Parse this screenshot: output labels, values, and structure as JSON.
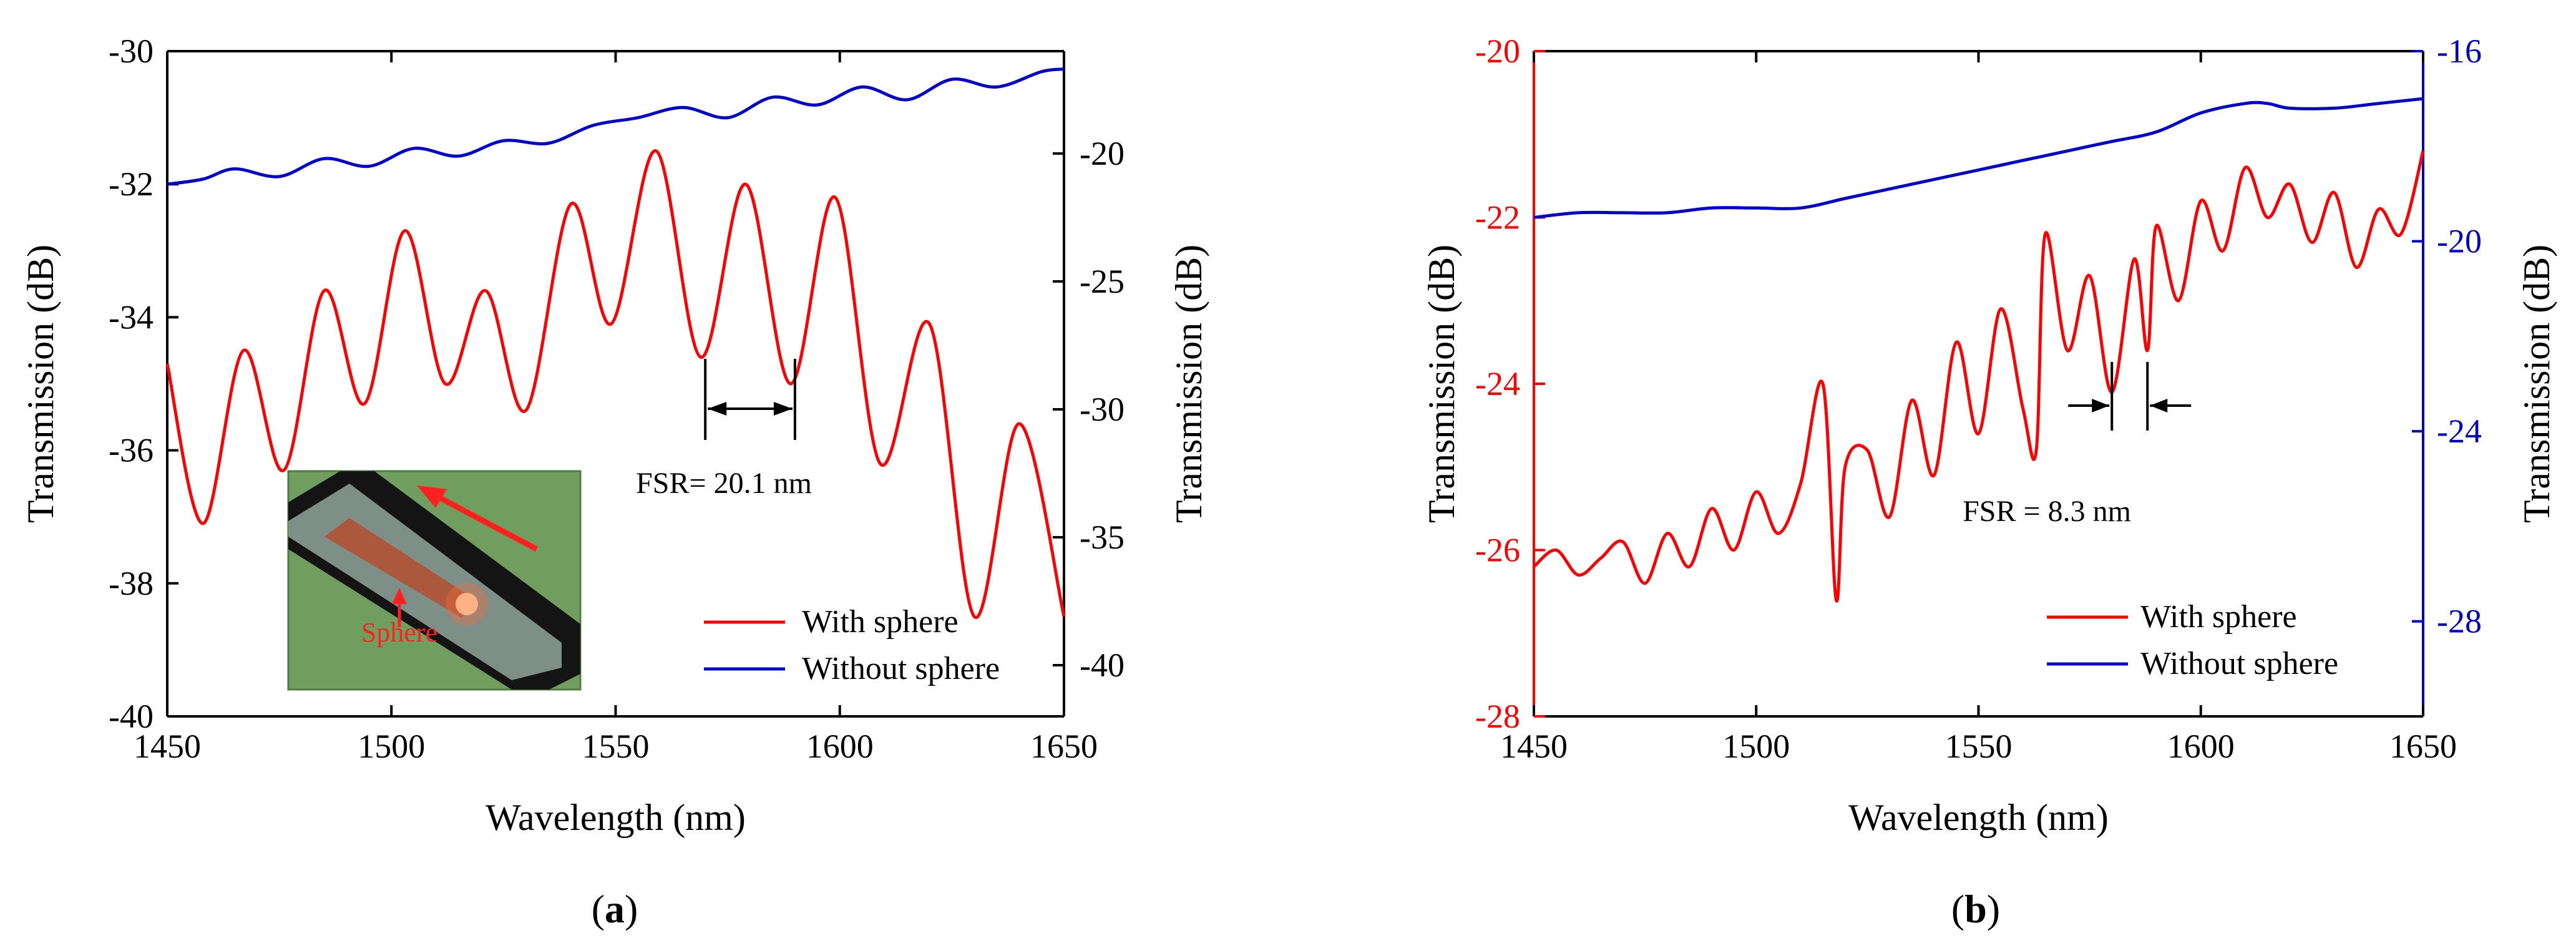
{
  "chart_data": [
    {
      "type": "line",
      "panel_label_open": "(",
      "panel_label_letter": "a",
      "panel_label_close": ")",
      "xlabel": "Wavelength (nm)",
      "ylabel_left": "Transmission (dB)",
      "ylabel_right": "Transmission (dB)",
      "xlim": [
        1450,
        1650
      ],
      "ylim_left": [
        -40,
        -30
      ],
      "ylim_right": [
        -42,
        -16
      ],
      "xticks": [
        1450,
        1500,
        1550,
        1600,
        1650
      ],
      "yticks_left": [
        -40,
        -38,
        -36,
        -34,
        -32,
        -30
      ],
      "yticks_right": [
        -40,
        -35,
        -30,
        -25,
        -20
      ],
      "left_axis_color": "#000000",
      "right_axis_color": "#000000",
      "grid": false,
      "legend_position": "bottom-right",
      "annotation": {
        "text": "FSR= 20.1 nm",
        "x1": 1570,
        "x2": 1590
      },
      "inset": {
        "label": "Sphere"
      },
      "series": [
        {
          "name": "With sphere",
          "axis": "left",
          "color": "#ff0000",
          "x": [
            1450,
            1458,
            1467,
            1476,
            1485,
            1494,
            1503,
            1512,
            1521,
            1530,
            1540,
            1549,
            1559,
            1569,
            1579,
            1589,
            1599,
            1609,
            1620,
            1630,
            1640,
            1650
          ],
          "y": [
            -34.7,
            -37.1,
            -34.5,
            -36.3,
            -33.6,
            -35.3,
            -32.7,
            -35.0,
            -33.6,
            -35.4,
            -32.3,
            -34.1,
            -31.5,
            -34.6,
            -32.0,
            -35.0,
            -32.2,
            -36.2,
            -34.1,
            -38.5,
            -35.6,
            -38.5
          ]
        },
        {
          "name": "Without sphere",
          "axis": "right",
          "color": "#0000cc",
          "x": [
            1450,
            1458,
            1465,
            1475,
            1485,
            1495,
            1505,
            1515,
            1525,
            1535,
            1545,
            1555,
            1565,
            1575,
            1585,
            1595,
            1605,
            1615,
            1625,
            1635,
            1645,
            1650
          ],
          "y": [
            -21.2,
            -21.0,
            -20.6,
            -20.9,
            -20.2,
            -20.5,
            -19.8,
            -20.1,
            -19.5,
            -19.6,
            -18.9,
            -18.6,
            -18.2,
            -18.6,
            -17.8,
            -18.1,
            -17.4,
            -17.9,
            -17.1,
            -17.4,
            -16.8,
            -16.7
          ]
        }
      ]
    },
    {
      "type": "line",
      "panel_label_open": "(",
      "panel_label_letter": "b",
      "panel_label_close": ")",
      "xlabel": "Wavelength (nm)",
      "ylabel_left": "Transmission (dB)",
      "ylabel_right": "Transmission (dB)",
      "xlim": [
        1450,
        1650
      ],
      "ylim_left": [
        -28,
        -20
      ],
      "ylim_right": [
        -30,
        -16
      ],
      "xticks": [
        1450,
        1500,
        1550,
        1600,
        1650
      ],
      "yticks_left": [
        -28,
        -26,
        -24,
        -22,
        -20
      ],
      "yticks_right": [
        -28,
        -24,
        -20,
        -16
      ],
      "left_axis_color": "#ff0000",
      "right_axis_color": "#0000cc",
      "grid": false,
      "legend_position": "bottom-right",
      "annotation": {
        "text": "FSR = 8.3 nm",
        "x1": 1580,
        "x2": 1588
      },
      "series": [
        {
          "name": "With sphere",
          "axis": "left",
          "color": "#ff0000",
          "x": [
            1450,
            1455,
            1460,
            1465,
            1470,
            1475,
            1480,
            1485,
            1490,
            1495,
            1500,
            1505,
            1510,
            1515,
            1518,
            1520,
            1525,
            1530,
            1535,
            1540,
            1545,
            1550,
            1555,
            1560,
            1563,
            1565,
            1570,
            1575,
            1580,
            1585,
            1588,
            1590,
            1595,
            1600,
            1605,
            1610,
            1615,
            1620,
            1625,
            1630,
            1635,
            1640,
            1645,
            1650
          ],
          "y": [
            -26.2,
            -26.0,
            -26.3,
            -26.1,
            -25.9,
            -26.4,
            -25.8,
            -26.2,
            -25.5,
            -26.0,
            -25.3,
            -25.8,
            -25.2,
            -24.0,
            -26.6,
            -25.0,
            -24.8,
            -25.6,
            -24.2,
            -25.1,
            -23.5,
            -24.6,
            -23.1,
            -24.3,
            -24.8,
            -22.2,
            -23.6,
            -22.7,
            -24.1,
            -22.5,
            -23.6,
            -22.1,
            -23.0,
            -21.8,
            -22.4,
            -21.4,
            -22.0,
            -21.6,
            -22.3,
            -21.7,
            -22.6,
            -21.9,
            -22.2,
            -21.2
          ]
        },
        {
          "name": "Without sphere",
          "axis": "right",
          "color": "#0000cc",
          "x": [
            1450,
            1460,
            1470,
            1480,
            1490,
            1500,
            1510,
            1520,
            1530,
            1540,
            1550,
            1560,
            1570,
            1580,
            1590,
            1600,
            1610,
            1615,
            1620,
            1630,
            1640,
            1650
          ],
          "y": [
            -19.5,
            -19.4,
            -19.4,
            -19.4,
            -19.3,
            -19.3,
            -19.3,
            -19.1,
            -18.9,
            -18.7,
            -18.5,
            -18.3,
            -18.1,
            -17.9,
            -17.7,
            -17.3,
            -17.1,
            -17.1,
            -17.2,
            -17.2,
            -17.1,
            -17.0
          ]
        }
      ]
    }
  ]
}
